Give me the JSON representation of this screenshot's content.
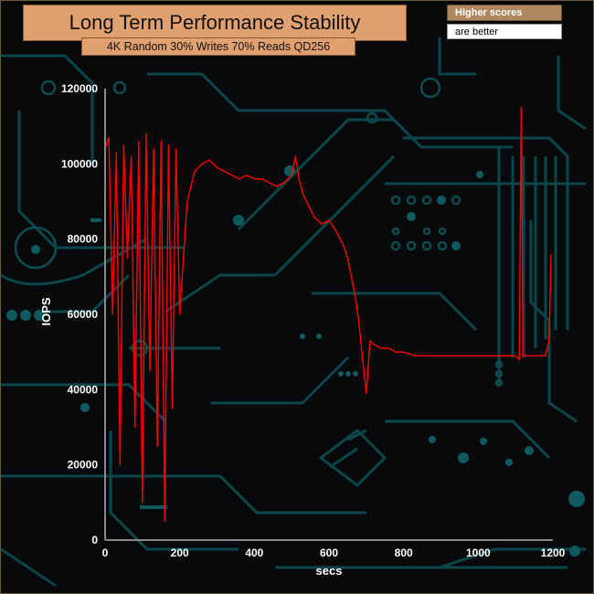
{
  "chart_data": {
    "type": "line",
    "title": "Long Term Performance Stability",
    "subtitle": "4K Random 30% Writes 70% Reads QD256",
    "note": [
      "Higher scores",
      "are better"
    ],
    "xlabel": "secs",
    "ylabel": "IOPS",
    "xlim": [
      0,
      1200
    ],
    "ylim": [
      0,
      120000
    ],
    "xticks": [
      0,
      200,
      400,
      600,
      800,
      1000,
      1200
    ],
    "yticks": [
      0,
      20000,
      40000,
      60000,
      80000,
      100000,
      120000
    ],
    "grid": false,
    "series": [
      {
        "color": "#ff0000",
        "x": [
          0,
          10,
          20,
          30,
          40,
          50,
          60,
          70,
          80,
          90,
          100,
          110,
          120,
          130,
          140,
          150,
          160,
          170,
          180,
          190,
          200,
          220,
          240,
          260,
          280,
          300,
          320,
          340,
          360,
          380,
          400,
          420,
          440,
          460,
          480,
          500,
          510,
          520,
          530,
          540,
          560,
          580,
          600,
          620,
          640,
          650,
          660,
          670,
          680,
          690,
          700,
          710,
          720,
          740,
          760,
          780,
          800,
          830,
          860,
          900,
          950,
          1000,
          1050,
          1100,
          1110,
          1115,
          1120,
          1140,
          1160,
          1180,
          1190,
          1195
        ],
        "y": [
          104000,
          107000,
          60000,
          103000,
          20000,
          105000,
          75000,
          102000,
          30000,
          106000,
          10000,
          108000,
          45000,
          104000,
          25000,
          106000,
          5000,
          105000,
          35000,
          104000,
          60000,
          90000,
          98000,
          100000,
          101000,
          99000,
          98000,
          97000,
          96000,
          97000,
          96000,
          96000,
          95000,
          94000,
          95000,
          97000,
          102000,
          96000,
          92000,
          90000,
          86000,
          84000,
          85000,
          82000,
          78000,
          75000,
          70000,
          65000,
          58000,
          48000,
          39000,
          53000,
          52000,
          51000,
          51000,
          50000,
          50000,
          49000,
          49000,
          49000,
          49000,
          49000,
          49000,
          49000,
          48000,
          115000,
          49000,
          49000,
          49000,
          49000,
          53000,
          76000
        ]
      }
    ]
  }
}
